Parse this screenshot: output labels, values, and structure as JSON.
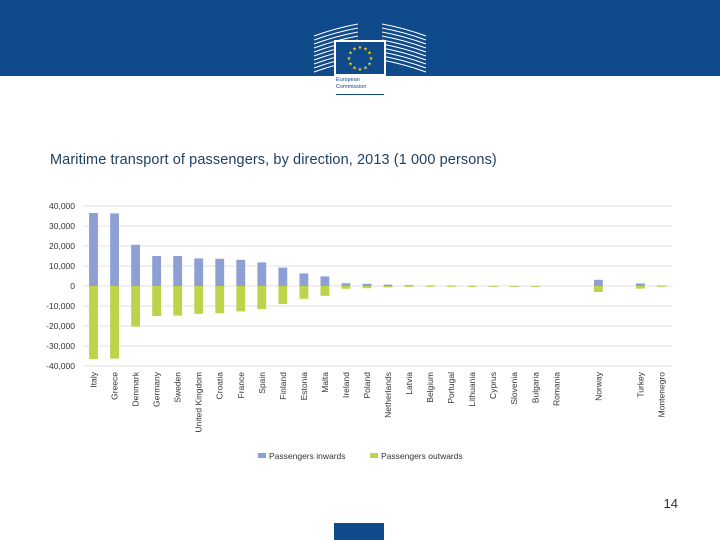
{
  "slide": {
    "title": "Maritime transport of passengers, by direction, 2013 (1 000 persons)",
    "page_number": "14"
  },
  "logo": {
    "org_line1": "European",
    "org_line2": "Commission"
  },
  "colors": {
    "header": "#0f4a8a",
    "inwards": "#8e9fd4",
    "outwards": "#bcd34a",
    "gridline": "#d9d9d9"
  },
  "chart_data": {
    "type": "bar",
    "title": "",
    "xlabel": "",
    "ylabel": "",
    "ylim": [
      -40000,
      40000
    ],
    "y_ticks": [
      "40,000",
      "30,000",
      "20,000",
      "10,000",
      "0",
      "-10,000",
      "-20,000",
      "-30,000",
      "-40,000"
    ],
    "grid": true,
    "legend_position": "bottom",
    "categories": [
      "Italy",
      "Greece",
      "Denmark",
      "Germany",
      "Sweden",
      "United Kingdom",
      "Croatia",
      "France",
      "Spain",
      "Finland",
      "Estonia",
      "Malta",
      "Ireland",
      "Poland",
      "Netherlands",
      "Latvia",
      "Belgium",
      "Portugal",
      "Lithuania",
      "Cyprus",
      "Slovenia",
      "Bulgaria",
      "Romania",
      "",
      "Norway",
      "",
      "Turkey",
      "Montenegro"
    ],
    "series": [
      {
        "name": "Passengers inwards",
        "color": "#8e9fd4",
        "values": [
          36500,
          36300,
          20600,
          15000,
          15000,
          13800,
          13600,
          13100,
          11800,
          9200,
          6300,
          4800,
          1400,
          1100,
          700,
          400,
          200,
          150,
          100,
          50,
          30,
          20,
          0,
          null,
          3100,
          null,
          1300,
          200
        ]
      },
      {
        "name": "Passengers outwards",
        "color": "#bcd34a",
        "values": [
          -36500,
          -36300,
          -20300,
          -15000,
          -14800,
          -13900,
          -13600,
          -12700,
          -11500,
          -9000,
          -6400,
          -4900,
          -1400,
          -1100,
          -700,
          -400,
          -200,
          -150,
          -100,
          -50,
          -30,
          -20,
          0,
          null,
          -3000,
          null,
          -1300,
          -200
        ]
      }
    ]
  }
}
